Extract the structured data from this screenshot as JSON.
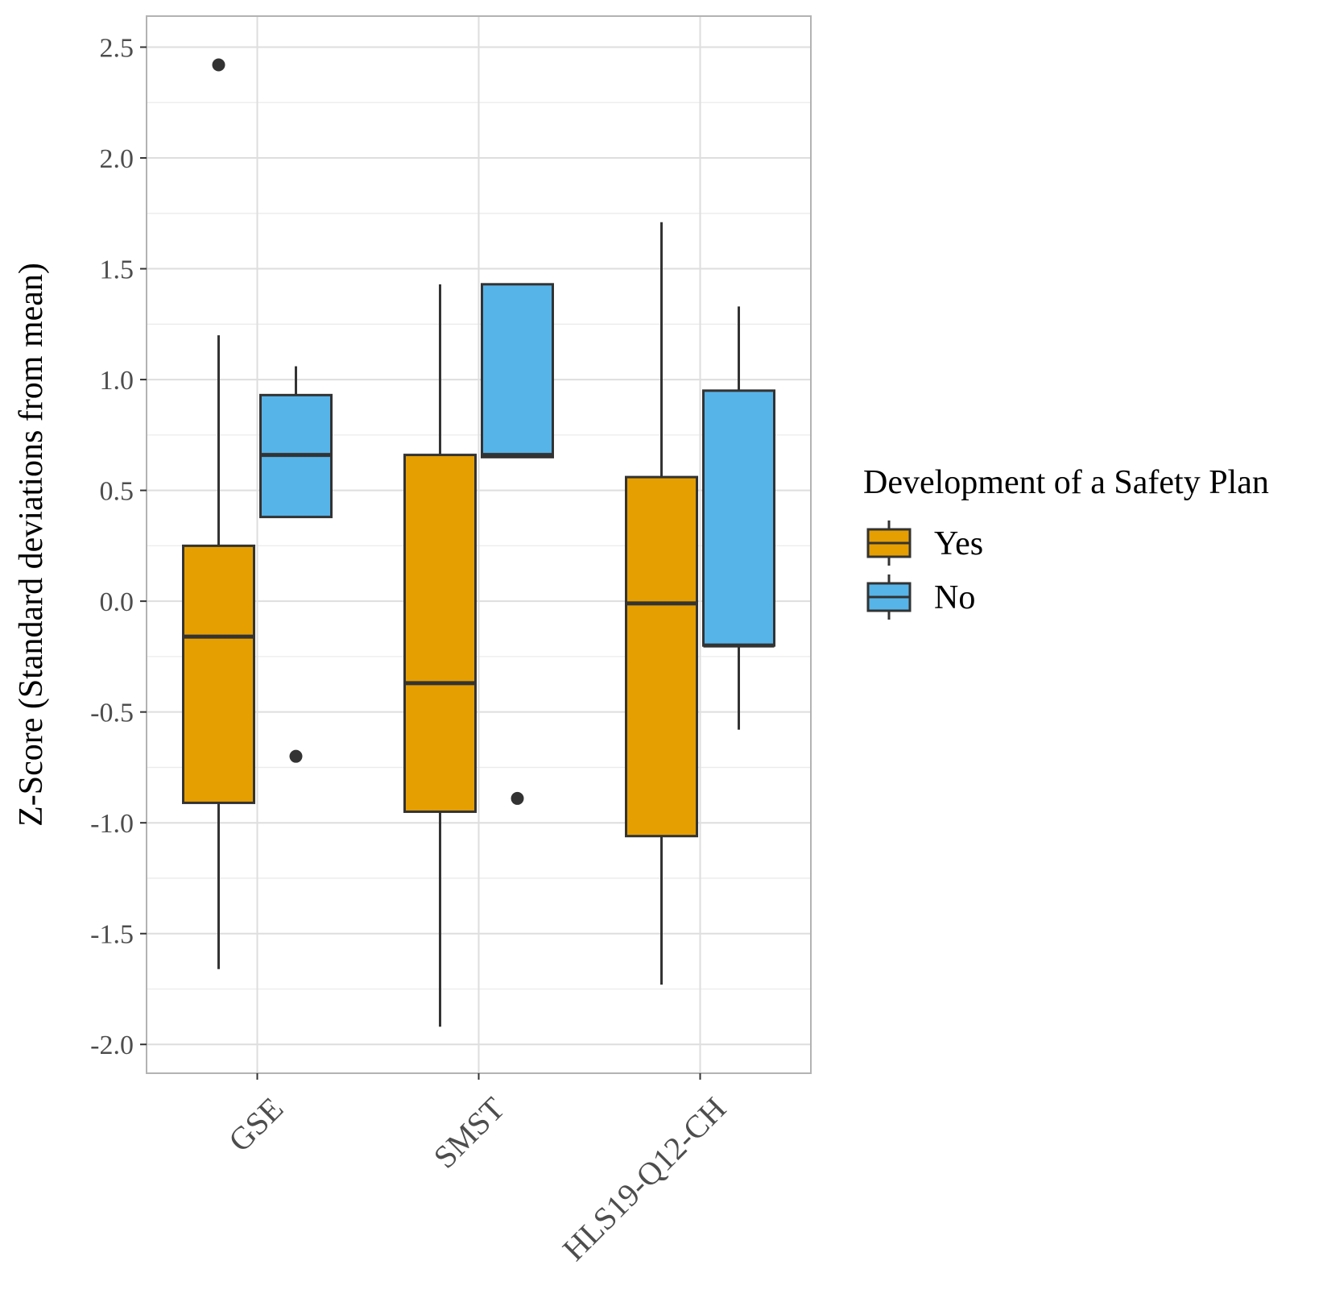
{
  "chart_data": {
    "type": "boxplot",
    "title": "",
    "xlabel": "",
    "ylabel": "Z-Score (Standard deviations from mean)",
    "ylim": [
      -2.13,
      2.64
    ],
    "yticks": [
      -2.0,
      -1.5,
      -1.0,
      -0.5,
      0.0,
      0.5,
      1.0,
      1.5,
      2.0,
      2.5
    ],
    "ytick_labels": [
      "-2.0",
      "-1.5",
      "-1.0",
      "-0.5",
      "0.0",
      "0.5",
      "1.0",
      "1.5",
      "2.0",
      "2.5"
    ],
    "yminor": [
      -1.75,
      -1.25,
      -0.75,
      -0.25,
      0.25,
      0.75,
      1.25,
      1.75,
      2.25
    ],
    "grid": true,
    "categories": [
      "GSE",
      "SMST",
      "HLS19-Q12-CH"
    ],
    "legend": {
      "title": "Development of a Safety Plan",
      "position": "right"
    },
    "series": [
      {
        "name": "Yes",
        "color": "#E69F00",
        "boxes": [
          {
            "category": "GSE",
            "whisker_low": -1.66,
            "q1": -0.91,
            "median": -0.16,
            "q3": 0.25,
            "whisker_high": 1.2,
            "outliers": [
              2.42
            ]
          },
          {
            "category": "SMST",
            "whisker_low": -1.92,
            "q1": -0.95,
            "median": -0.37,
            "q3": 0.66,
            "whisker_high": 1.43,
            "outliers": []
          },
          {
            "category": "HLS19-Q12-CH",
            "whisker_low": -1.73,
            "q1": -1.06,
            "median": -0.01,
            "q3": 0.56,
            "whisker_high": 1.71,
            "outliers": []
          }
        ]
      },
      {
        "name": "No",
        "color": "#56B4E9",
        "boxes": [
          {
            "category": "GSE",
            "whisker_low": 0.38,
            "q1": 0.38,
            "median": 0.66,
            "q3": 0.93,
            "whisker_high": 1.06,
            "outliers": [
              -0.7
            ]
          },
          {
            "category": "SMST",
            "whisker_low": 0.65,
            "q1": 0.65,
            "median": 0.66,
            "q3": 1.43,
            "whisker_high": 1.43,
            "outliers": [
              -0.89
            ]
          },
          {
            "category": "HLS19-Q12-CH",
            "whisker_low": -0.58,
            "q1": -0.2,
            "median": -0.2,
            "q3": 0.95,
            "whisker_high": 1.33,
            "outliers": []
          }
        ]
      }
    ]
  }
}
